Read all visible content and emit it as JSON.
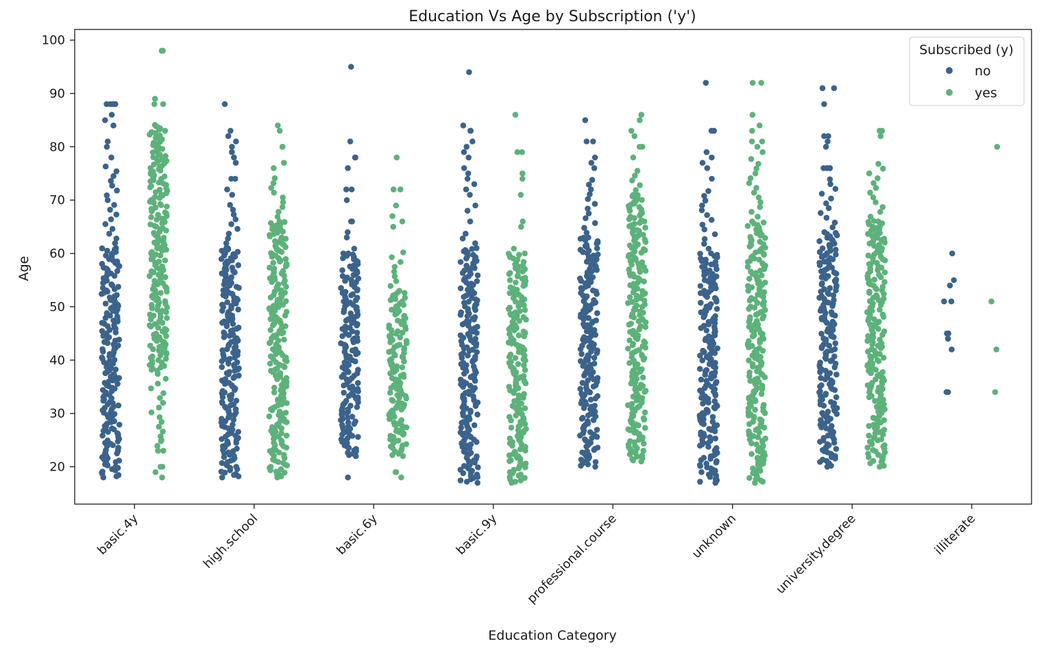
{
  "chart_data": {
    "type": "scatter",
    "subtype": "strip",
    "title": "Education Vs Age by Subscription ('y')",
    "xlabel": "Education Category",
    "ylabel": "Age",
    "categories": [
      "basic.4y",
      "high.school",
      "basic.6y",
      "basic.9y",
      "professional.course",
      "unknown",
      "university.degree",
      "illiterate"
    ],
    "ylim": [
      13,
      102
    ],
    "yticks": [
      20,
      30,
      40,
      50,
      60,
      70,
      80,
      90,
      100
    ],
    "grid": false,
    "legend": {
      "title": "Subscribed (y)",
      "position": "top-right",
      "entries": [
        "no",
        "yes"
      ]
    },
    "colors": {
      "no": "#3b638c",
      "yes": "#5db27a"
    },
    "series": [
      {
        "name": "no",
        "ranges": [
          {
            "category": "basic.4y",
            "dense": [
              18,
              61
            ],
            "mid": [
              61,
              77
            ],
            "outliers": [
              78,
              80,
              81,
              84,
              85,
              86,
              88,
              88,
              88,
              88
            ]
          },
          {
            "category": "high.school",
            "dense": [
              18,
              61
            ],
            "mid": [
              61,
              70
            ],
            "outliers": [
              71,
              72,
              74,
              74,
              77,
              78,
              79,
              80,
              81,
              82,
              83,
              88
            ]
          },
          {
            "category": "basic.6y",
            "dense": [
              22,
              60
            ],
            "mid": [
              60,
              61
            ],
            "outliers": [
              18,
              63,
              64,
              66,
              66,
              70,
              72,
              72,
              76,
              78,
              78,
              81,
              95
            ]
          },
          {
            "category": "basic.9y",
            "dense": [
              17,
              61
            ],
            "mid": [
              61,
              64
            ],
            "outliers": [
              66,
              68,
              69,
              71,
              72,
              73,
              74,
              75,
              76,
              78,
              79,
              80,
              81,
              83,
              83,
              84,
              94
            ]
          },
          {
            "category": "professional.course",
            "dense": [
              20,
              63
            ],
            "mid": [
              63,
              74
            ],
            "outliers": [
              76,
              77,
              78,
              81,
              81,
              85
            ]
          },
          {
            "category": "unknown",
            "dense": [
              17,
              60
            ],
            "mid": [
              60,
              72
            ],
            "outliers": [
              74,
              76,
              77,
              78,
              79,
              83,
              83,
              92
            ]
          },
          {
            "category": "university.degree",
            "dense": [
              20,
              64
            ],
            "mid": [
              64,
              74
            ],
            "outliers": [
              76,
              76,
              76,
              76,
              80,
              81,
              82,
              82,
              88,
              91,
              91
            ]
          },
          {
            "category": "illiterate",
            "dense": null,
            "mid": null,
            "outliers": [
              34,
              34,
              42,
              44,
              45,
              45,
              51,
              51,
              54,
              55,
              60
            ]
          }
        ]
      },
      {
        "name": "yes",
        "ranges": [
          {
            "category": "basic.4y",
            "dense": [
              38,
              84
            ],
            "mid": [
              23,
              38
            ],
            "outliers": [
              18,
              19,
              20,
              20,
              23,
              25,
              88,
              88,
              89,
              98,
              98
            ]
          },
          {
            "category": "high.school",
            "dense": [
              18,
              66
            ],
            "mid": [
              66,
              75
            ],
            "outliers": [
              76,
              77,
              80,
              80,
              83,
              84
            ]
          },
          {
            "category": "basic.6y",
            "dense": [
              22,
              53
            ],
            "mid": [
              53,
              61
            ],
            "outliers": [
              18,
              19,
              19,
              65,
              66,
              67,
              69,
              72,
              72,
              78
            ]
          },
          {
            "category": "basic.9y",
            "dense": [
              17,
              60
            ],
            "mid": [
              60,
              61
            ],
            "outliers": [
              65,
              66,
              71,
              74,
              75,
              79,
              79,
              86
            ]
          },
          {
            "category": "professional.course",
            "dense": [
              21,
              71
            ],
            "mid": [
              71,
              76
            ],
            "outliers": [
              78,
              80,
              80,
              82,
              83,
              85,
              86
            ]
          },
          {
            "category": "unknown",
            "dense": [
              17,
              66
            ],
            "mid": [
              66,
              78
            ],
            "outliers": [
              79,
              80,
              81,
              81,
              83,
              84,
              86,
              92,
              92
            ]
          },
          {
            "category": "university.degree",
            "dense": [
              20,
              66
            ],
            "mid": [
              66,
              77
            ],
            "outliers": [
              82,
              83,
              83
            ]
          },
          {
            "category": "illiterate",
            "dense": null,
            "mid": null,
            "outliers": [
              34,
              42,
              51,
              80
            ]
          }
        ]
      }
    ]
  }
}
